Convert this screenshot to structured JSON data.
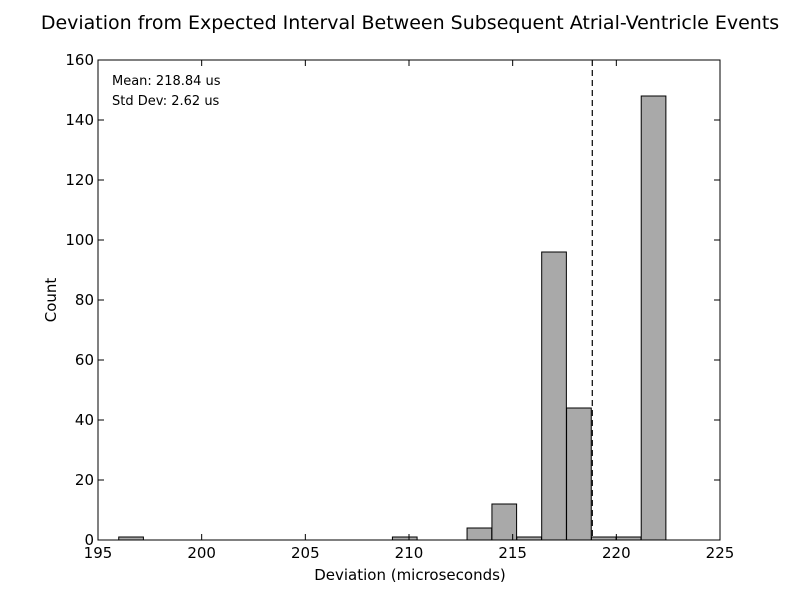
{
  "chart_data": {
    "type": "histogram",
    "title": "Deviation from Expected Interval Between Subsequent Atrial-Ventricle Events",
    "xlabel": "Deviation (microseconds)",
    "ylabel": "Count",
    "xlim": [
      195,
      225
    ],
    "ylim": [
      0,
      160
    ],
    "x_ticks": [
      195,
      200,
      205,
      210,
      215,
      220,
      225
    ],
    "y_ticks": [
      0,
      20,
      40,
      60,
      80,
      100,
      120,
      140,
      160
    ],
    "grid": false,
    "bin_width": 1.19,
    "bars": [
      {
        "x_start": 196.0,
        "value": 1
      },
      {
        "x_start": 209.2,
        "value": 1
      },
      {
        "x_start": 212.8,
        "value": 4
      },
      {
        "x_start": 214.0,
        "value": 12
      },
      {
        "x_start": 215.2,
        "value": 1
      },
      {
        "x_start": 216.4,
        "value": 96
      },
      {
        "x_start": 217.6,
        "value": 44
      },
      {
        "x_start": 218.8,
        "value": 1
      },
      {
        "x_start": 220.0,
        "value": 1
      },
      {
        "x_start": 221.2,
        "value": 148
      }
    ],
    "mean_line_x": 218.84,
    "annotations": [
      "Mean: 218.84 us",
      "Std Dev: 2.62 us"
    ],
    "colors": {
      "bar_fill": "#a9a9a9",
      "bar_stroke": "#000000",
      "mean_line": "#000000"
    }
  }
}
